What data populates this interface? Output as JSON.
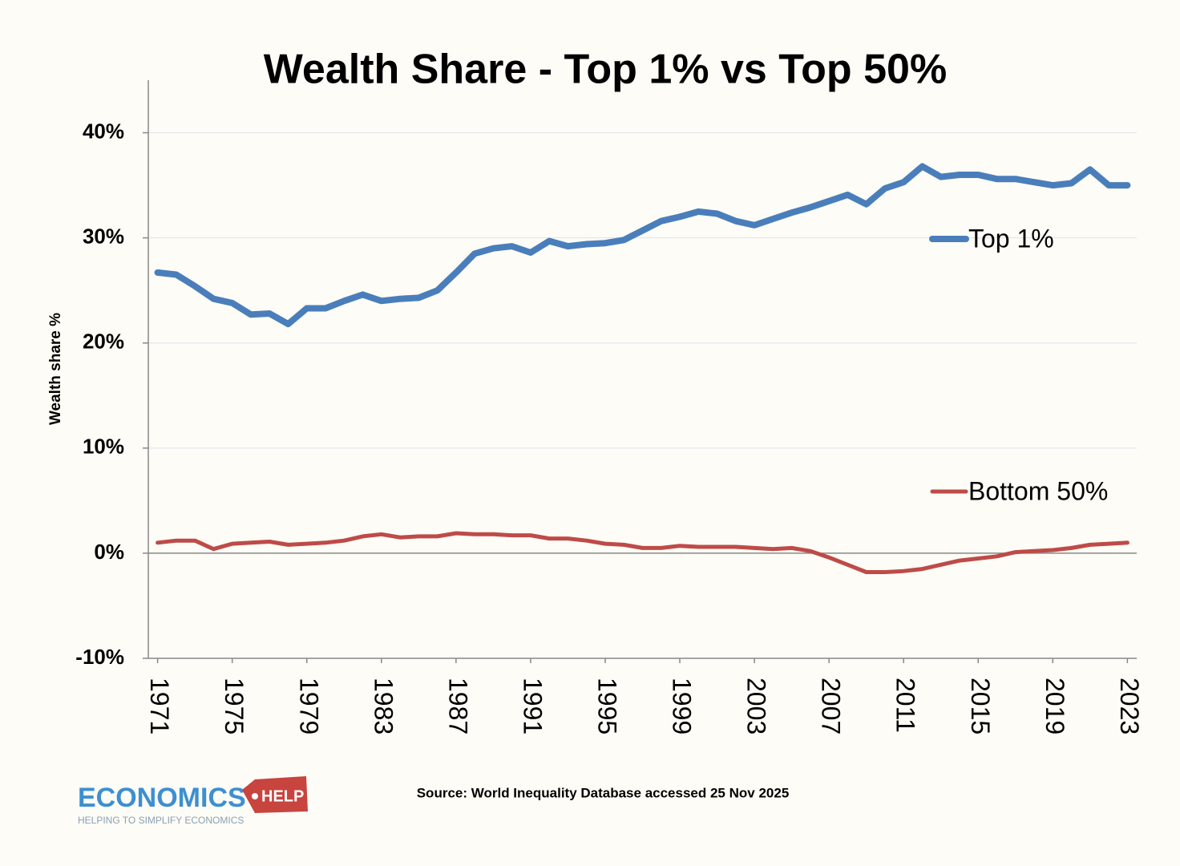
{
  "chart_data": {
    "type": "line",
    "title": "Wealth Share - Top 1% vs Top 50%",
    "y_label": "Wealth share %",
    "source": "Source: World Inequality Database accessed 25 Nov 2025",
    "x": [
      1971,
      1972,
      1973,
      1974,
      1975,
      1976,
      1977,
      1978,
      1979,
      1980,
      1981,
      1982,
      1983,
      1984,
      1985,
      1986,
      1987,
      1988,
      1989,
      1990,
      1991,
      1992,
      1993,
      1994,
      1995,
      1996,
      1997,
      1998,
      1999,
      2000,
      2001,
      2002,
      2003,
      2004,
      2005,
      2006,
      2007,
      2008,
      2009,
      2010,
      2011,
      2012,
      2013,
      2014,
      2015,
      2016,
      2017,
      2018,
      2019,
      2020,
      2021,
      2022,
      2023
    ],
    "series": [
      {
        "name": "Top 1%",
        "color": "#4a7ebb",
        "width": 8,
        "values": [
          26.7,
          26.5,
          25.4,
          24.2,
          23.8,
          22.7,
          22.8,
          21.8,
          23.3,
          23.3,
          24.0,
          24.6,
          24.0,
          24.2,
          24.3,
          25.0,
          26.7,
          28.5,
          29.0,
          29.2,
          28.6,
          29.7,
          29.2,
          29.4,
          29.5,
          29.8,
          30.7,
          31.6,
          32.0,
          32.5,
          32.3,
          31.6,
          31.2,
          31.8,
          32.4,
          32.9,
          33.5,
          34.1,
          33.2,
          34.7,
          35.3,
          36.8,
          35.8,
          36.0,
          36.0,
          35.6,
          35.6,
          35.3,
          35.0,
          35.2,
          36.5,
          35.0,
          35.0
        ]
      },
      {
        "name": "Bottom 50%",
        "color": "#be4b48",
        "width": 5,
        "values": [
          1.0,
          1.2,
          1.2,
          0.4,
          0.9,
          1.0,
          1.1,
          0.8,
          0.9,
          1.0,
          1.2,
          1.6,
          1.8,
          1.5,
          1.6,
          1.6,
          1.9,
          1.8,
          1.8,
          1.7,
          1.7,
          1.4,
          1.4,
          1.2,
          0.9,
          0.8,
          0.5,
          0.5,
          0.7,
          0.6,
          0.6,
          0.6,
          0.5,
          0.4,
          0.5,
          0.2,
          -0.4,
          -1.1,
          -1.8,
          -1.8,
          -1.7,
          -1.5,
          -1.1,
          -0.7,
          -0.5,
          -0.3,
          0.1,
          0.2,
          0.3,
          0.5,
          0.8,
          0.9,
          1.0
        ]
      }
    ],
    "xlim": [
      1970.5,
      2023.5
    ],
    "xticks": [
      1971,
      1975,
      1979,
      1983,
      1987,
      1991,
      1995,
      1999,
      2003,
      2007,
      2011,
      2015,
      2019,
      2023
    ],
    "ylim": [
      -10,
      45
    ],
    "yticks": [
      {
        "value": -10,
        "label": "-10%"
      },
      {
        "value": 0,
        "label": "0%"
      },
      {
        "value": 10,
        "label": "10%"
      },
      {
        "value": 20,
        "label": "20%"
      },
      {
        "value": 30,
        "label": "30%"
      },
      {
        "value": 40,
        "label": "40%"
      }
    ],
    "grid": true,
    "legend": "right"
  },
  "branding": {
    "name": "ECONOMICS",
    "tag": "HELP",
    "tagline": "HELPING TO SIMPLIFY ECONOMICS"
  }
}
